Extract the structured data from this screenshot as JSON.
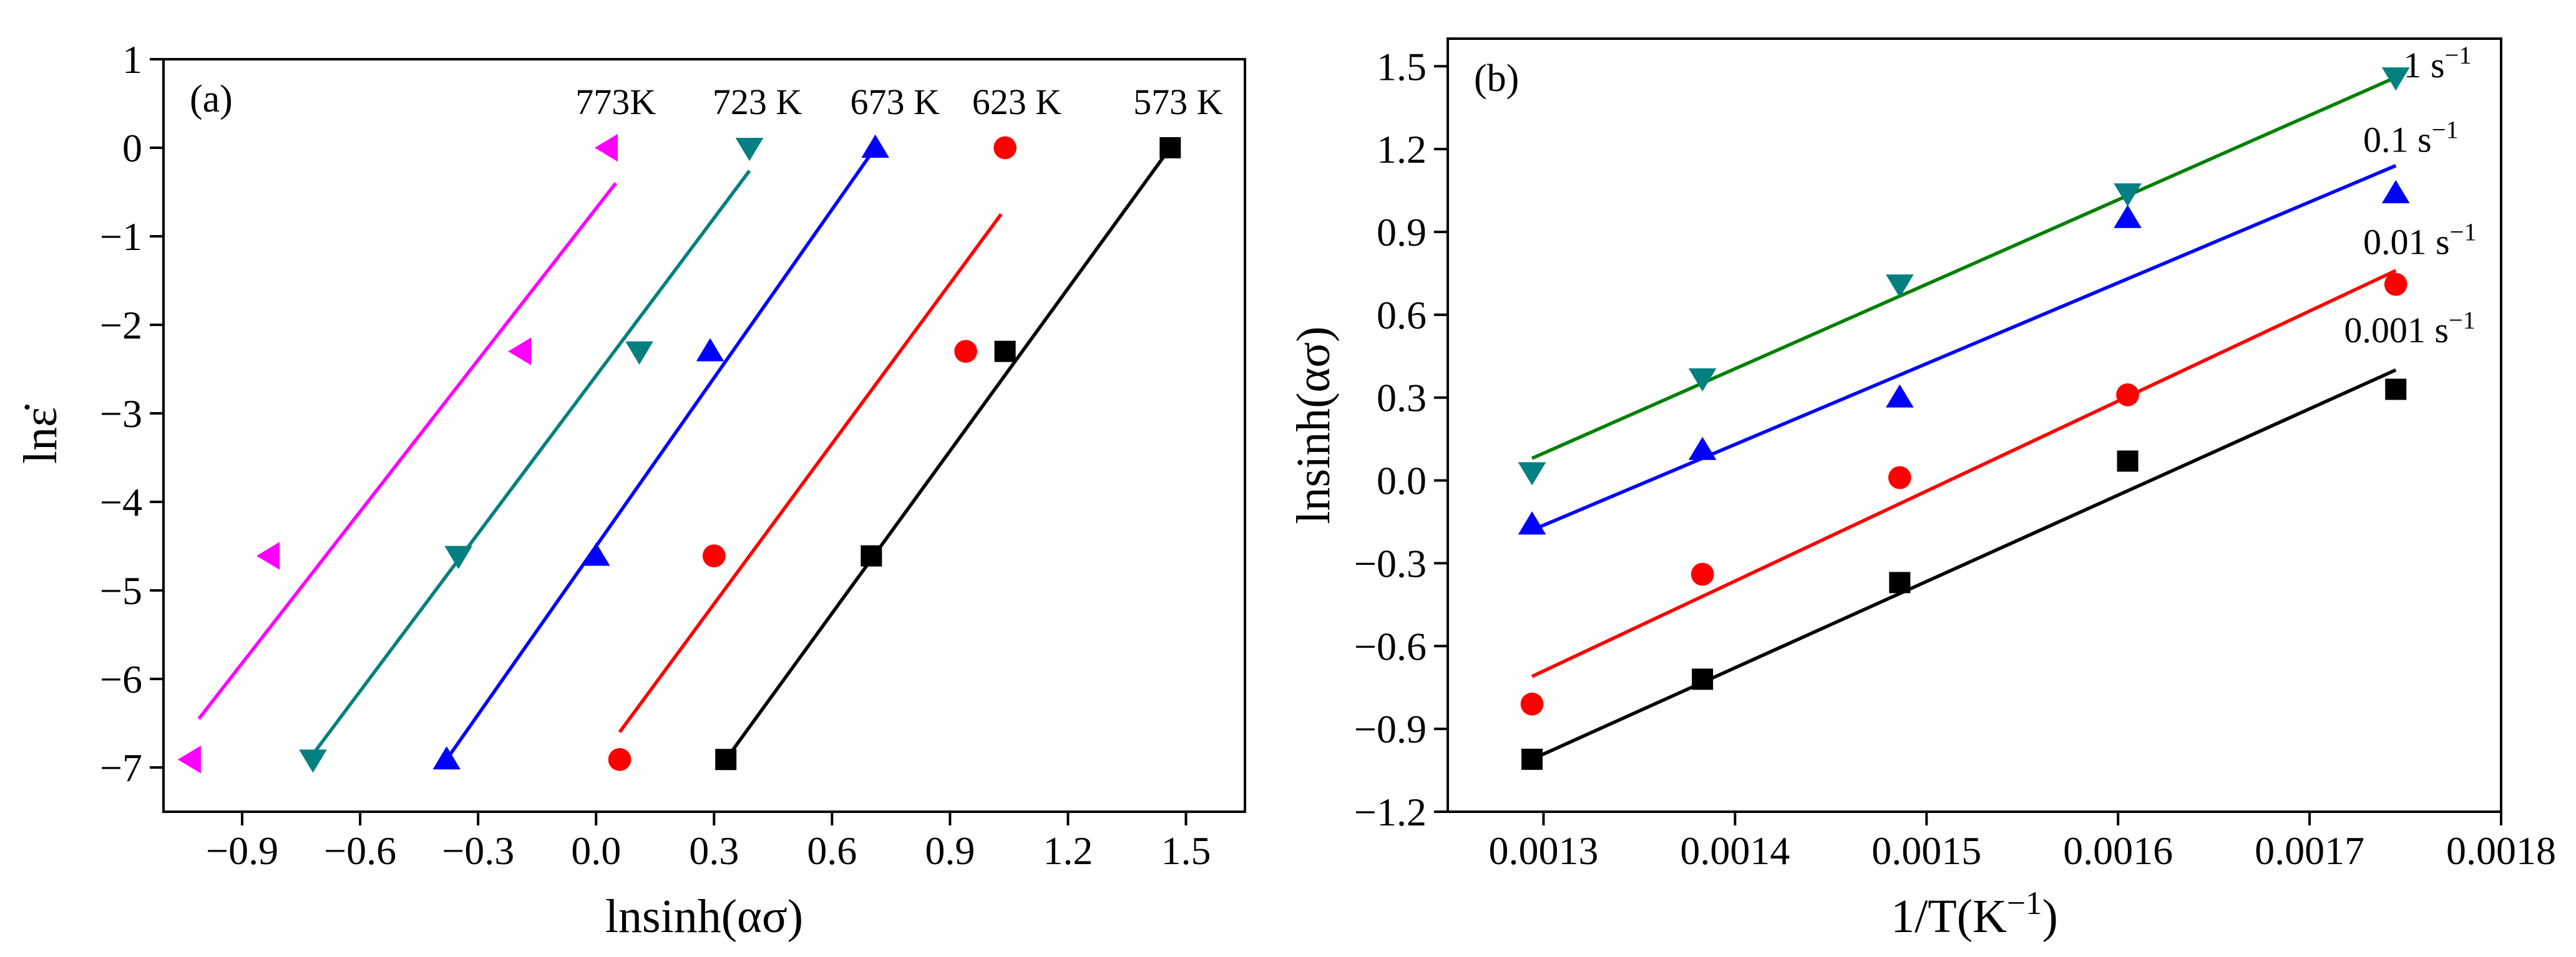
{
  "chart_data": [
    {
      "panel_label": "(a)",
      "type": "scatter",
      "xlabel": "lnsinh(ασ)",
      "ylabel": "lnε̇",
      "xlim": [
        -1.1,
        1.65
      ],
      "ylim": [
        -7.5,
        1.0
      ],
      "xticks": [
        -0.9,
        -0.6,
        -0.3,
        0.0,
        0.3,
        0.6,
        0.9,
        1.2,
        1.5
      ],
      "xtick_labels": [
        "−0.9",
        "−0.6",
        "−0.3",
        "0.0",
        "0.3",
        "0.6",
        "0.9",
        "1.2",
        "1.5"
      ],
      "yticks": [
        -7,
        -6,
        -5,
        -4,
        -3,
        -2,
        -1,
        0,
        1
      ],
      "ytick_labels": [
        "−7",
        "−6",
        "−5",
        "−4",
        "−3",
        "−2",
        "−1",
        "0",
        "1"
      ],
      "series": [
        {
          "name": "773K",
          "color": "#ff00ff",
          "marker": "triangle-left",
          "x": [
            -1.03,
            -0.83,
            -0.19,
            0.03
          ],
          "y": [
            -6.91,
            -4.61,
            -2.3,
            0.0
          ],
          "fit": {
            "x": [
              -1.01,
              0.05
            ],
            "y": [
              -6.45,
              -0.4
            ]
          },
          "label_anchor": {
            "x": 0.05,
            "y": 0.38
          }
        },
        {
          "name": "723 K",
          "color": "#008080",
          "marker": "triangle-down",
          "x": [
            -0.72,
            -0.35,
            0.11,
            0.39
          ],
          "y": [
            -6.91,
            -4.61,
            -2.3,
            0.0
          ],
          "fit": {
            "x": [
              -0.73,
              0.39
            ],
            "y": [
              -6.91,
              -0.26
            ]
          },
          "label_anchor": {
            "x": 0.41,
            "y": 0.38
          }
        },
        {
          "name": "673 K",
          "color": "#0000ff",
          "marker": "triangle-up",
          "x": [
            -0.38,
            0.0,
            0.29,
            0.71
          ],
          "y": [
            -6.91,
            -4.61,
            -2.3,
            0.0
          ],
          "fit": {
            "x": [
              -0.38,
              0.71
            ],
            "y": [
              -6.91,
              0.0
            ]
          },
          "label_anchor": {
            "x": 0.76,
            "y": 0.38
          }
        },
        {
          "name": "623 K",
          "color": "#ff0000",
          "marker": "circle",
          "x": [
            0.06,
            0.3,
            0.94,
            1.04
          ],
          "y": [
            -6.91,
            -4.61,
            -2.3,
            0.0
          ],
          "fit": {
            "x": [
              0.06,
              1.03
            ],
            "y": [
              -6.6,
              -0.75
            ]
          },
          "label_anchor": {
            "x": 1.07,
            "y": 0.38
          }
        },
        {
          "name": "573 K",
          "color": "#000000",
          "marker": "square",
          "x": [
            0.33,
            0.7,
            1.04,
            1.46
          ],
          "y": [
            -6.91,
            -4.61,
            -2.3,
            0.0
          ],
          "fit": {
            "x": [
              0.33,
              1.46
            ],
            "y": [
              -6.91,
              0.0
            ]
          },
          "label_anchor": {
            "x": 1.48,
            "y": 0.38
          }
        }
      ]
    },
    {
      "panel_label": "(b)",
      "type": "scatter",
      "xlabel": "1/T(K−1)",
      "ylabel": "lnsinh(ασ)",
      "xlim": [
        0.00125,
        0.0018
      ],
      "ylim": [
        -1.2,
        1.6
      ],
      "xticks": [
        0.0013,
        0.0014,
        0.0015,
        0.0016,
        0.0017,
        0.0018
      ],
      "xtick_labels": [
        "0.0013",
        "0.0014",
        "0.0015",
        "0.0016",
        "0.0017",
        "0.0018"
      ],
      "yticks": [
        -1.2,
        -0.9,
        -0.6,
        -0.3,
        0.0,
        0.3,
        0.6,
        0.9,
        1.2,
        1.5
      ],
      "ytick_labels": [
        "−1.2",
        "−0.9",
        "−0.6",
        "−0.3",
        "0.0",
        "0.3",
        "0.6",
        "0.9",
        "1.2",
        "1.5"
      ],
      "series": [
        {
          "name": "1 s−1",
          "color": "#008080",
          "line_color": "#008000",
          "marker": "triangle-down",
          "x": [
            0.001294,
            0.001383,
            0.001486,
            0.001605,
            0.001745
          ],
          "y": [
            0.03,
            0.37,
            0.71,
            1.04,
            1.46
          ],
          "fit": {
            "x": [
              0.001294,
              0.001745
            ],
            "y": [
              0.08,
              1.46
            ]
          },
          "label_anchor": {
            "x": 0.001749,
            "y": 1.46
          }
        },
        {
          "name": "0.1 s−1",
          "color": "#0000ff",
          "marker": "triangle-up",
          "x": [
            0.001294,
            0.001383,
            0.001486,
            0.001605,
            0.001745
          ],
          "y": [
            -0.16,
            0.11,
            0.3,
            0.95,
            1.04
          ],
          "fit": {
            "x": [
              0.001294,
              0.001745
            ],
            "y": [
              -0.18,
              1.14
            ]
          },
          "label_anchor": {
            "x": 0.001728,
            "y": 1.19
          }
        },
        {
          "name": "0.01 s−1",
          "color": "#ff0000",
          "marker": "circle",
          "x": [
            0.001294,
            0.001383,
            0.001486,
            0.001605,
            0.001745
          ],
          "y": [
            -0.81,
            -0.34,
            0.01,
            0.31,
            0.71
          ],
          "fit": {
            "x": [
              0.001294,
              0.001745
            ],
            "y": [
              -0.71,
              0.76
            ]
          },
          "label_anchor": {
            "x": 0.001728,
            "y": 0.82
          }
        },
        {
          "name": "0.001 s−1",
          "color": "#000000",
          "marker": "square",
          "x": [
            0.001294,
            0.001383,
            0.001486,
            0.001605,
            0.001745
          ],
          "y": [
            -1.01,
            -0.72,
            -0.37,
            0.07,
            0.33
          ],
          "fit": {
            "x": [
              0.001294,
              0.001745
            ],
            "y": [
              -1.01,
              0.4
            ]
          },
          "label_anchor": {
            "x": 0.001718,
            "y": 0.5
          }
        }
      ]
    }
  ]
}
